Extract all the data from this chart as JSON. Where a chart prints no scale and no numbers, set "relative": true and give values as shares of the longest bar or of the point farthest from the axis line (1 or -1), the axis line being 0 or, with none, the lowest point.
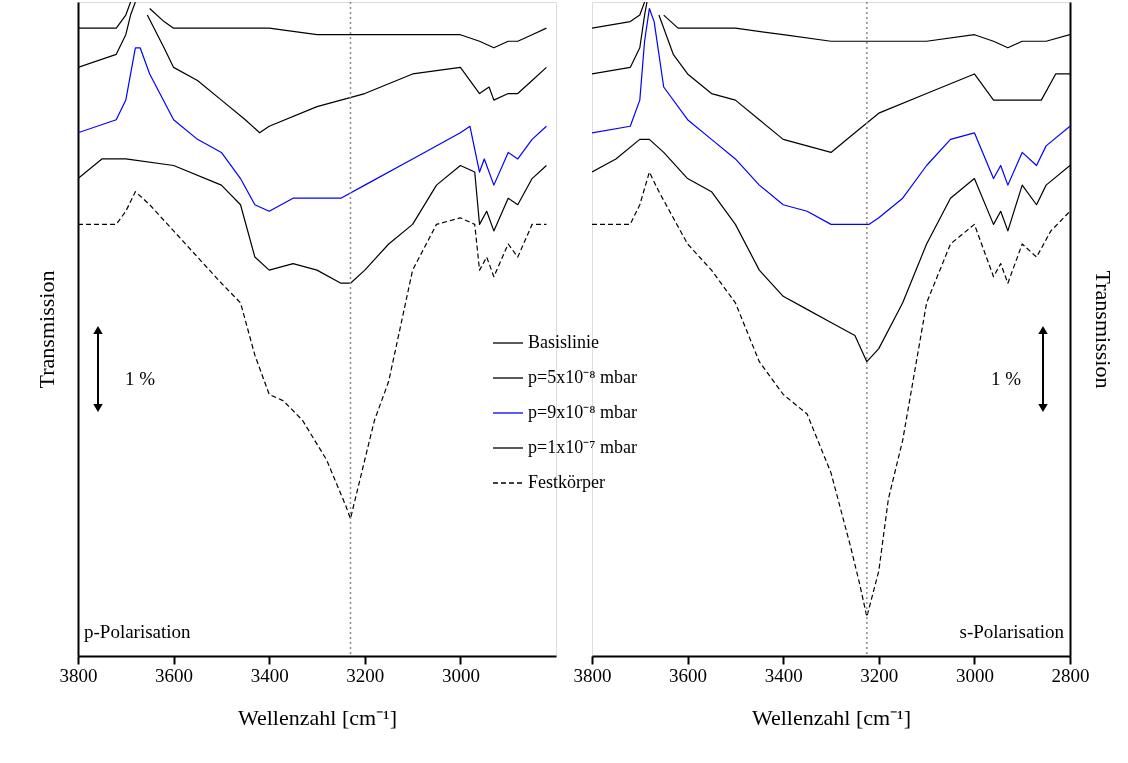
{
  "chart_data": [
    {
      "type": "line",
      "relative": true,
      "xlabel": "Wellenzahl [cm⁻¹]",
      "ylabel": "Transmission",
      "xlim": [
        3800,
        2800
      ],
      "xticks": [
        3800,
        3600,
        3400,
        3200,
        3000
      ],
      "tick_labels": "x",
      "grid": false,
      "legend": "right",
      "marker": "none",
      "annotations": [
        "p-Polarisation",
        "1 %"
      ],
      "ref_lines": [
        {
          "axis": "x",
          "value": 3230,
          "color": "#888888",
          "line_style": "dotted"
        }
      ],
      "series": [
        {
          "name": "Basislinie",
          "color": "#000000",
          "line_style": "solid",
          "x": [
            3800,
            3720,
            3700,
            3690,
            3670,
            3650,
            3620,
            3600,
            3500,
            3400,
            3300,
            3200,
            3100,
            3000,
            2960,
            2930,
            2900,
            2880,
            2850,
            2820
          ],
          "values": [
            0.96,
            0.96,
            0.98,
            1.0,
            null,
            0.99,
            0.97,
            0.96,
            0.96,
            0.96,
            0.95,
            0.95,
            0.95,
            0.95,
            0.94,
            0.93,
            0.94,
            0.94,
            0.95,
            0.96
          ]
        },
        {
          "name": "p=5x10⁻⁸ mbar",
          "color": "#000000",
          "line_style": "solid",
          "x": [
            3800,
            3720,
            3700,
            3690,
            3680,
            3670,
            3655,
            3620,
            3600,
            3550,
            3500,
            3450,
            3420,
            3400,
            3300,
            3200,
            3100,
            3000,
            2960,
            2940,
            2930,
            2900,
            2880,
            2850,
            2820
          ],
          "values": [
            0.9,
            0.92,
            0.95,
            0.98,
            1.0,
            null,
            0.98,
            0.93,
            0.9,
            0.88,
            0.85,
            0.82,
            0.8,
            0.81,
            0.84,
            0.86,
            0.89,
            0.9,
            0.86,
            0.87,
            0.85,
            0.86,
            0.86,
            0.88,
            0.9
          ]
        },
        {
          "name": "p=9x10⁻⁸ mbar",
          "color": "#0000ff",
          "line_style": "solid",
          "x": [
            3800,
            3720,
            3700,
            3680,
            3670,
            3650,
            3600,
            3550,
            3500,
            3460,
            3430,
            3400,
            3350,
            3300,
            3250,
            3200,
            3100,
            3000,
            2980,
            2960,
            2950,
            2930,
            2900,
            2880,
            2850,
            2820
          ],
          "values": [
            0.8,
            0.82,
            0.85,
            0.93,
            0.93,
            0.89,
            0.82,
            0.79,
            0.77,
            0.73,
            0.69,
            0.68,
            0.7,
            0.7,
            0.7,
            0.72,
            0.76,
            0.8,
            0.81,
            0.74,
            0.76,
            0.72,
            0.77,
            0.76,
            0.79,
            0.81
          ]
        },
        {
          "name": "p=1x10⁻⁷ mbar",
          "color": "#000000",
          "line_style": "solid",
          "x": [
            3800,
            3750,
            3700,
            3600,
            3500,
            3460,
            3430,
            3400,
            3350,
            3300,
            3250,
            3230,
            3200,
            3150,
            3100,
            3050,
            3000,
            2970,
            2960,
            2945,
            2930,
            2900,
            2880,
            2850,
            2820
          ],
          "values": [
            0.73,
            0.76,
            0.76,
            0.75,
            0.72,
            0.69,
            0.61,
            0.59,
            0.6,
            0.59,
            0.57,
            0.57,
            0.59,
            0.63,
            0.66,
            0.72,
            0.75,
            0.74,
            0.66,
            0.68,
            0.65,
            0.7,
            0.69,
            0.73,
            0.75
          ]
        },
        {
          "name": "Festkörper",
          "color": "#000000",
          "line_style": "dashed",
          "x": [
            3800,
            3720,
            3700,
            3680,
            3650,
            3600,
            3550,
            3500,
            3460,
            3430,
            3400,
            3370,
            3330,
            3280,
            3240,
            3230,
            3210,
            3180,
            3150,
            3100,
            3050,
            3000,
            2970,
            2960,
            2945,
            2930,
            2900,
            2880,
            2850,
            2820
          ],
          "values": [
            0.66,
            0.66,
            0.68,
            0.71,
            0.69,
            0.65,
            0.61,
            0.57,
            0.54,
            0.46,
            0.4,
            0.39,
            0.36,
            0.3,
            0.23,
            0.21,
            0.27,
            0.36,
            0.42,
            0.59,
            0.66,
            0.67,
            0.66,
            0.59,
            0.61,
            0.58,
            0.63,
            0.61,
            0.66,
            0.66
          ]
        }
      ]
    },
    {
      "type": "line",
      "relative": true,
      "xlabel": "Wellenzahl [cm⁻¹]",
      "ylabel": "Transmission",
      "xlim": [
        3800,
        2800
      ],
      "xticks": [
        3800,
        3600,
        3400,
        3200,
        3000,
        2800
      ],
      "tick_labels": "x",
      "grid": false,
      "marker": "none",
      "annotations": [
        "s-Polarisation",
        "1 %"
      ],
      "ref_lines": [
        {
          "axis": "x",
          "value": 3225,
          "color": "#888888",
          "line_style": "dotted"
        }
      ],
      "series": [
        {
          "color": "#000000",
          "line_style": "solid",
          "x": [
            3800,
            3720,
            3700,
            3690,
            3670,
            3650,
            3620,
            3500,
            3400,
            3300,
            3200,
            3100,
            3000,
            2960,
            2930,
            2900,
            2850,
            2800
          ],
          "values": [
            0.96,
            0.97,
            0.98,
            1.0,
            null,
            0.98,
            0.96,
            0.96,
            0.95,
            0.94,
            0.94,
            0.94,
            0.95,
            0.94,
            0.93,
            0.94,
            0.94,
            0.95
          ]
        },
        {
          "color": "#000000",
          "line_style": "solid",
          "x": [
            3800,
            3720,
            3700,
            3690,
            3685,
            3670,
            3660,
            3630,
            3600,
            3550,
            3500,
            3450,
            3400,
            3350,
            3300,
            3250,
            3200,
            3100,
            3000,
            2960,
            2940,
            2920,
            2880,
            2860,
            2830,
            2800
          ],
          "values": [
            0.89,
            0.9,
            0.93,
            0.98,
            1.0,
            null,
            0.98,
            0.92,
            0.89,
            0.86,
            0.85,
            0.82,
            0.79,
            0.78,
            0.77,
            0.8,
            0.83,
            0.86,
            0.89,
            0.85,
            0.85,
            0.85,
            0.85,
            0.85,
            0.89,
            0.89
          ]
        },
        {
          "color": "#0000ff",
          "line_style": "solid",
          "x": [
            3800,
            3720,
            3700,
            3690,
            3680,
            3670,
            3650,
            3600,
            3550,
            3500,
            3450,
            3400,
            3350,
            3300,
            3250,
            3220,
            3200,
            3150,
            3100,
            3050,
            3000,
            2960,
            2945,
            2930,
            2900,
            2870,
            2850,
            2800
          ],
          "values": [
            0.8,
            0.81,
            0.85,
            0.94,
            0.99,
            0.97,
            0.87,
            0.82,
            0.79,
            0.76,
            0.72,
            0.69,
            0.68,
            0.66,
            0.66,
            0.66,
            0.67,
            0.7,
            0.75,
            0.79,
            0.8,
            0.73,
            0.75,
            0.72,
            0.77,
            0.75,
            0.78,
            0.81
          ]
        },
        {
          "color": "#000000",
          "line_style": "solid",
          "x": [
            3800,
            3750,
            3700,
            3680,
            3650,
            3600,
            3550,
            3500,
            3450,
            3400,
            3350,
            3300,
            3250,
            3225,
            3200,
            3150,
            3100,
            3050,
            3000,
            2960,
            2945,
            2930,
            2900,
            2870,
            2850,
            2800
          ],
          "values": [
            0.74,
            0.76,
            0.79,
            0.79,
            0.77,
            0.73,
            0.71,
            0.66,
            0.59,
            0.55,
            0.53,
            0.51,
            0.49,
            0.45,
            0.47,
            0.54,
            0.63,
            0.7,
            0.73,
            0.66,
            0.68,
            0.65,
            0.72,
            0.69,
            0.72,
            0.75
          ]
        },
        {
          "color": "#000000",
          "line_style": "dashed",
          "x": [
            3800,
            3720,
            3700,
            3680,
            3660,
            3600,
            3550,
            3500,
            3450,
            3400,
            3350,
            3300,
            3260,
            3240,
            3225,
            3200,
            3180,
            3150,
            3100,
            3050,
            3000,
            2960,
            2945,
            2930,
            2900,
            2870,
            2840,
            2800
          ],
          "values": [
            0.66,
            0.66,
            0.69,
            0.74,
            0.71,
            0.63,
            0.59,
            0.54,
            0.45,
            0.4,
            0.37,
            0.28,
            0.17,
            0.11,
            0.06,
            0.13,
            0.24,
            0.33,
            0.54,
            0.63,
            0.66,
            0.58,
            0.6,
            0.57,
            0.63,
            0.61,
            0.65,
            0.68
          ]
        }
      ]
    }
  ]
}
